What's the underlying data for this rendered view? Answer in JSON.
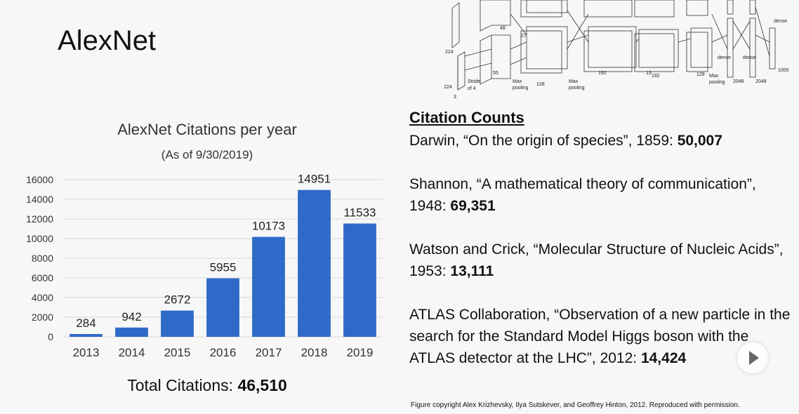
{
  "slide": {
    "title": "AlexNet",
    "footer": "Figure copyright Alex Krizhevsky, Ilya Sutskever, and Geoffrey Hinton, 2012. Reproduced with permission."
  },
  "diagram": {
    "labels": [
      "224",
      "224",
      "3",
      "Stride of 4",
      "55",
      "48",
      "Max pooling",
      "27",
      "128",
      "Max pooling",
      "192",
      "13",
      "192",
      "128",
      "Max pooling",
      "dense",
      "dense",
      "dense",
      "2048",
      "2048",
      "1000"
    ]
  },
  "chart_data": {
    "type": "bar",
    "title": "AlexNet Citations per year",
    "subtitle": "(As of 9/30/2019)",
    "categories": [
      "2013",
      "2014",
      "2015",
      "2016",
      "2017",
      "2018",
      "2019"
    ],
    "values": [
      284,
      942,
      2672,
      5955,
      10173,
      14951,
      11533
    ],
    "value_labels": [
      "284",
      "942",
      "2672",
      "5955",
      "10173",
      "14951",
      "11533"
    ],
    "yticks": [
      0,
      2000,
      4000,
      6000,
      8000,
      10000,
      12000,
      14000,
      16000
    ],
    "ylim": [
      0,
      16000
    ],
    "grid": true,
    "bar_color": "#2f6ac8"
  },
  "total": {
    "label": "Total Citations: ",
    "value": "46,510"
  },
  "citations": {
    "header": "Citation Counts",
    "entries": [
      {
        "text": "Darwin, “On the origin of species”, 1859: ",
        "count": "50,007"
      },
      {
        "text": "Shannon, “A mathematical theory of communication”, 1948: ",
        "count": "69,351"
      },
      {
        "text": "Watson and Crick, “Molecular Structure of Nucleic Acids”, 1953: ",
        "count": "13,111"
      },
      {
        "text": "ATLAS Collaboration, “Observation of a new particle in the search for the Standard Model Higgs boson with the ATLAS detector at the LHC”, 2012: ",
        "count": "14,424"
      }
    ]
  }
}
